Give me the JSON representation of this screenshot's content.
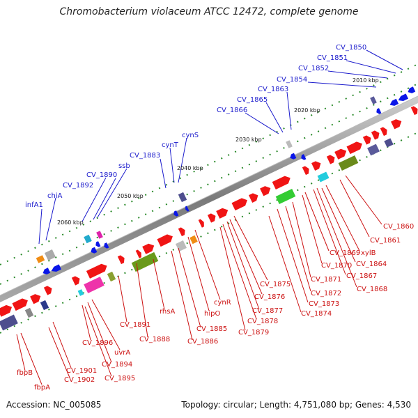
{
  "title": "Chromobacterium violaceum ATCC 12472, complete genome",
  "accession": "Accession: NC_005085",
  "summary": "Topology: circular; Length: 4,751,080 bp; Genes: 4,530",
  "kbp_ticks": [
    "2010 kbp",
    "2020 kbp",
    "2030 kbp",
    "2040 kbp",
    "2050 kbp",
    "2060 kbp"
  ],
  "upper_labels": [
    "CV_1850",
    "CV_1851",
    "CV_1852",
    "CV_1854",
    "CV_1863",
    "CV_1865",
    "CV_1866",
    "cynS",
    "cynT",
    "CV_1883",
    "ssb",
    "CV_1890",
    "CV_1892",
    "chiA",
    "infA1"
  ],
  "lower_labels": [
    "CV_1860",
    "CV_1861",
    "xylB",
    "CV_1864",
    "CV_1869",
    "CV_1867",
    "CV_1870",
    "CV_1868",
    "CV_1871",
    "CV_1872",
    "CV_1875",
    "CV_1873",
    "CV_1876",
    "CV_1874",
    "cynR",
    "CV_1877",
    "CV_1878",
    "hipO",
    "CV_1879",
    "rhsA",
    "CV_1885",
    "CV_1886",
    "CV_1891",
    "CV_1888",
    "CV_1896",
    "uvrA",
    "CV_1894",
    "CV_1895",
    "CV_1901",
    "CV_1902",
    "fbpB",
    "fbpA"
  ],
  "colors": {
    "forward_strand": "#0a16e8",
    "reverse_strand": "#f01414",
    "backbone": "#888888",
    "upper_label": "#1a1acc",
    "lower_label": "#cc1111",
    "tick_dot": "#2a8a2a"
  }
}
